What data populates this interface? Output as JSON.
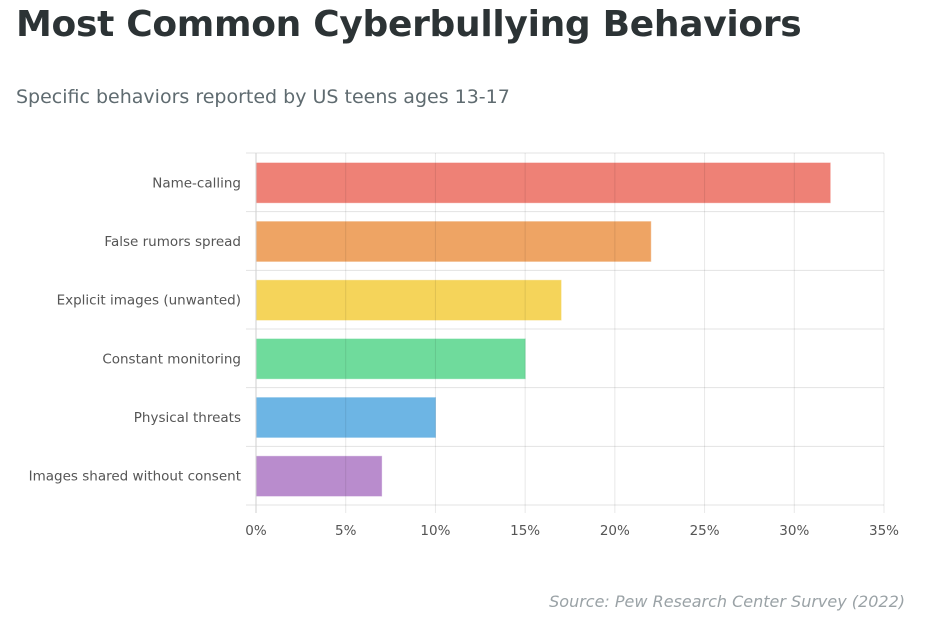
{
  "title": "Most Common Cyberbullying Behaviors",
  "subtitle": "Specific behaviors reported by US teens ages 13-17",
  "source": "Source: Pew Research Center Survey (2022)",
  "chart_data": {
    "type": "bar",
    "orientation": "horizontal",
    "categories": [
      "Name-calling",
      "False rumors spread",
      "Explicit images (unwanted)",
      "Constant monitoring",
      "Physical threats",
      "Images shared without consent"
    ],
    "values": [
      32,
      22,
      17,
      15,
      10,
      7
    ],
    "colors": [
      "#ee8176",
      "#eea464",
      "#f5d45a",
      "#6fdb9c",
      "#6db5e4",
      "#b98ccd"
    ],
    "xlim": [
      0,
      35
    ],
    "xticks": [
      0,
      5,
      10,
      15,
      20,
      25,
      30,
      35
    ],
    "tick_format": "%",
    "grid": true
  }
}
